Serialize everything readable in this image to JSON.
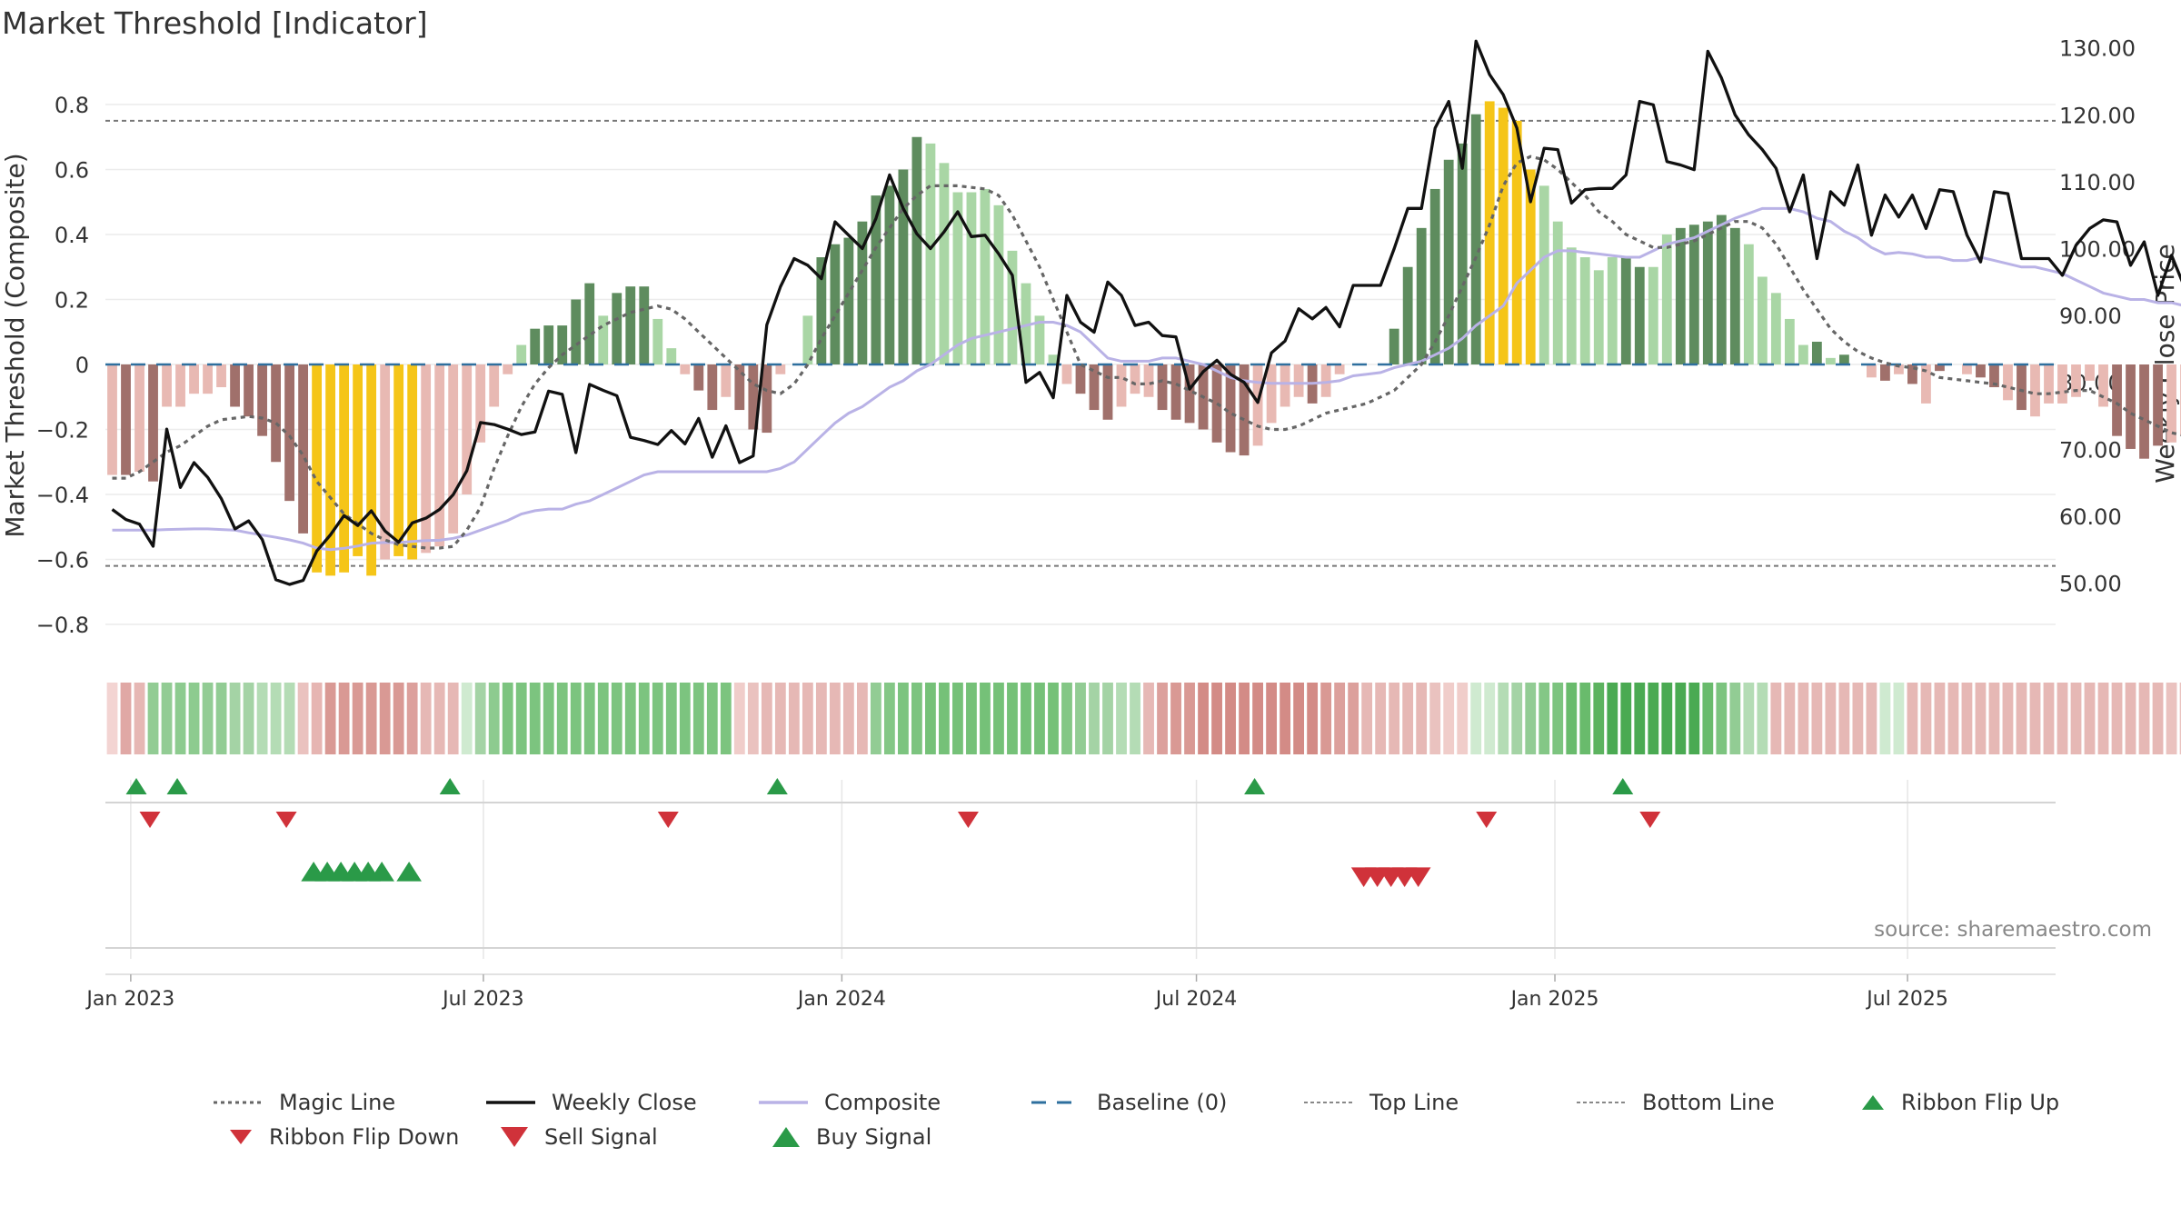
{
  "title": "Market Threshold [Indicator]",
  "source": "source: sharemaestro.com",
  "colors": {
    "dark_green": "#5e8c5e",
    "light_green": "#a9d6a5",
    "dark_red": "#a0706b",
    "light_red": "#e8b9b3",
    "yellow": "#f5c518",
    "magic": "#666666",
    "close": "#111111",
    "composite": "#b9b2e6",
    "baseline": "#2e6f9e",
    "up": "#2a9a48",
    "down": "#d0323a"
  },
  "chart_data": {
    "type": "bar",
    "title": "Market Threshold [Indicator]",
    "ylabel": "Market Threshold (Composite)",
    "ylabel_right": "Weekly Close Price",
    "ylim": [
      -0.9,
      0.82
    ],
    "ylim_right": [
      48,
      132
    ],
    "yticks": [
      -0.8,
      -0.6,
      -0.4,
      -0.2,
      0,
      0.2,
      0.4,
      0.6,
      0.8
    ],
    "ytick_labels": [
      "−0.8",
      "−0.6",
      "−0.4",
      "−0.2",
      "0",
      "0.2",
      "0.4",
      "0.6",
      "0.8"
    ],
    "yticks_right": [
      50,
      60,
      70,
      80,
      90,
      100,
      110,
      120,
      130
    ],
    "ytick_labels_right": [
      "50.00",
      "60.00",
      "70.00",
      "80.00",
      "90.00",
      "100.00",
      "110.00",
      "120.00",
      "130.00"
    ],
    "xlim": [
      "2022-12-19",
      "2025-09-15"
    ],
    "x_ticks": [
      "2023-01-01",
      "2023-07-01",
      "2024-01-01",
      "2024-07-01",
      "2025-01-01",
      "2025-07-01"
    ],
    "x_tick_labels": [
      "Jan 2023",
      "Jul 2023",
      "Jan 2024",
      "Jul 2024",
      "Jan 2025",
      "Jul 2025"
    ],
    "bar_start_date": "2022-12-19",
    "bar_interval_days": 7,
    "bar_values": [
      -0.34,
      -0.34,
      -0.33,
      -0.36,
      -0.13,
      -0.13,
      -0.09,
      -0.09,
      -0.07,
      -0.13,
      -0.16,
      -0.22,
      -0.3,
      -0.42,
      -0.52,
      -0.64,
      -0.65,
      -0.64,
      -0.59,
      -0.65,
      -0.6,
      -0.59,
      -0.6,
      -0.58,
      -0.56,
      -0.52,
      -0.4,
      -0.24,
      -0.13,
      -0.03,
      0.06,
      0.11,
      0.12,
      0.12,
      0.2,
      0.25,
      0.15,
      0.22,
      0.24,
      0.24,
      0.14,
      0.05,
      -0.03,
      -0.08,
      -0.14,
      -0.1,
      -0.14,
      -0.2,
      -0.21,
      -0.03,
      0.0,
      0.15,
      0.33,
      0.37,
      0.39,
      0.44,
      0.52,
      0.55,
      0.6,
      0.7,
      0.68,
      0.62,
      0.53,
      0.53,
      0.54,
      0.49,
      0.35,
      0.25,
      0.15,
      0.03,
      -0.06,
      -0.09,
      -0.14,
      -0.17,
      -0.13,
      -0.09,
      -0.1,
      -0.14,
      -0.17,
      -0.18,
      -0.2,
      -0.24,
      -0.27,
      -0.28,
      -0.25,
      -0.18,
      -0.13,
      -0.1,
      -0.12,
      -0.1,
      -0.03,
      0.0,
      0.0,
      0.0,
      0.11,
      0.3,
      0.42,
      0.54,
      0.63,
      0.68,
      0.77,
      0.81,
      0.79,
      0.75,
      0.6,
      0.55,
      0.44,
      0.36,
      0.33,
      0.29,
      0.33,
      0.33,
      0.3,
      0.3,
      0.4,
      0.42,
      0.43,
      0.44,
      0.46,
      0.42,
      0.37,
      0.27,
      0.22,
      0.14,
      0.06,
      0.07,
      0.02,
      0.03,
      0.0,
      -0.04,
      -0.05,
      -0.03,
      -0.06,
      -0.12,
      -0.02,
      0.0,
      -0.03,
      -0.04,
      -0.07,
      -0.11,
      -0.14,
      -0.16,
      -0.12,
      -0.12,
      -0.1,
      -0.05,
      -0.13,
      -0.22,
      -0.26,
      -0.29,
      -0.25,
      -0.24,
      -0.22
    ],
    "bar_colors": [
      "LR",
      "DR",
      "LR",
      "DR",
      "LR",
      "LR",
      "LR",
      "LR",
      "LR",
      "DR",
      "DR",
      "DR",
      "DR",
      "DR",
      "DR",
      "Y",
      "Y",
      "Y",
      "Y",
      "Y",
      "LR",
      "Y",
      "Y",
      "LR",
      "LR",
      "LR",
      "LR",
      "LR",
      "LR",
      "LR",
      "LG",
      "DG",
      "DG",
      "DG",
      "DG",
      "DG",
      "LG",
      "DG",
      "DG",
      "DG",
      "LG",
      "LG",
      "LR",
      "DR",
      "DR",
      "LR",
      "DR",
      "DR",
      "DR",
      "LR",
      "LG",
      "LG",
      "DG",
      "DG",
      "DG",
      "DG",
      "DG",
      "DG",
      "DG",
      "DG",
      "LG",
      "LG",
      "LG",
      "LG",
      "LG",
      "LG",
      "LG",
      "LG",
      "LG",
      "LG",
      "LR",
      "DR",
      "DR",
      "DR",
      "LR",
      "LR",
      "LR",
      "DR",
      "DR",
      "DR",
      "DR",
      "DR",
      "DR",
      "DR",
      "LR",
      "LR",
      "LR",
      "LR",
      "DR",
      "LR",
      "LR",
      "LR",
      "LR",
      "LR",
      "DG",
      "DG",
      "DG",
      "DG",
      "DG",
      "DG",
      "DG",
      "Y",
      "Y",
      "Y",
      "Y",
      "LG",
      "LG",
      "LG",
      "LG",
      "LG",
      "LG",
      "DG",
      "DG",
      "LG",
      "LG",
      "DG",
      "DG",
      "DG",
      "DG",
      "DG",
      "LG",
      "LG",
      "LG",
      "LG",
      "LG",
      "DG",
      "LG",
      "DG",
      "LR",
      "LR",
      "DR",
      "LR",
      "DR",
      "LR",
      "DR",
      "LR",
      "LR",
      "DR",
      "DR",
      "LR",
      "DR",
      "LR",
      "LR",
      "LR",
      "LR",
      "LR",
      "LR",
      "DR",
      "DR",
      "DR",
      "DR",
      "LR",
      "LR",
      "DR"
    ],
    "series": [
      {
        "name": "Weekly Close",
        "axis": "right",
        "values": [
          61.0,
          59.5,
          58.8,
          55.5,
          73.0,
          64.3,
          68.0,
          65.8,
          62.6,
          58.1,
          59.3,
          56.5,
          50.5,
          49.8,
          50.4,
          54.8,
          57.2,
          60.1,
          58.6,
          60.8,
          57.8,
          56.1,
          59.0,
          59.7,
          61.0,
          63.2,
          66.8,
          74.0,
          73.7,
          73.0,
          72.2,
          72.6,
          78.7,
          78.2,
          69.5,
          79.7,
          78.8,
          78.0,
          71.8,
          71.3,
          70.7,
          72.8,
          70.8,
          74.6,
          68.8,
          73.5,
          68.0,
          69.0,
          88.6,
          94.3,
          98.5,
          97.5,
          95.5,
          104.0,
          102.0,
          100.0,
          104.5,
          111.0,
          106.0,
          102.2,
          100.0,
          102.5,
          105.5,
          101.8,
          102.0,
          99.2,
          96.0,
          80.0,
          81.5,
          77.7,
          93.0,
          89.0,
          87.5,
          95.0,
          93.0,
          88.5,
          89.0,
          87.0,
          86.8,
          79.0,
          81.6,
          83.3,
          81.2,
          80.0,
          77.0,
          84.4,
          86.2,
          91.0,
          89.5,
          91.2,
          88.3,
          94.5,
          94.5,
          94.5,
          100.0,
          106.0,
          106.0,
          118.0,
          122.0,
          112.0,
          131.0,
          126.0,
          123.0,
          118.0,
          107.0,
          115.0,
          114.8,
          106.8,
          108.8,
          109.0,
          109.0,
          111.0,
          122.0,
          121.5,
          113.0,
          112.5,
          111.8,
          129.5,
          125.5,
          120.0,
          117.0,
          114.8,
          112.0,
          105.5,
          111.0,
          98.5,
          108.5,
          106.5,
          112.5,
          102.0,
          108.0,
          104.7,
          108.0,
          103.0,
          108.8,
          108.5,
          102.0,
          98.0,
          108.5,
          108.2,
          98.5,
          98.5,
          98.5,
          96.0,
          100.5,
          103.0,
          104.3,
          104.0,
          97.5,
          101.0,
          93.0,
          99.0,
          94.0,
          96.0,
          95.0,
          94.0
        ]
      },
      {
        "name": "Composite",
        "axis": "left",
        "values": [
          -0.51,
          -0.51,
          -0.51,
          -0.51,
          -0.508,
          -0.507,
          -0.506,
          -0.506,
          -0.508,
          -0.51,
          -0.518,
          -0.525,
          -0.532,
          -0.54,
          -0.55,
          -0.565,
          -0.57,
          -0.566,
          -0.559,
          -0.55,
          -0.548,
          -0.548,
          -0.545,
          -0.542,
          -0.541,
          -0.535,
          -0.525,
          -0.51,
          -0.495,
          -0.48,
          -0.46,
          -0.45,
          -0.445,
          -0.445,
          -0.43,
          -0.42,
          -0.4,
          -0.38,
          -0.36,
          -0.34,
          -0.33,
          -0.33,
          -0.33,
          -0.33,
          -0.33,
          -0.33,
          -0.33,
          -0.33,
          -0.33,
          -0.32,
          -0.3,
          -0.26,
          -0.22,
          -0.18,
          -0.15,
          -0.13,
          -0.1,
          -0.07,
          -0.05,
          -0.02,
          0.0,
          0.03,
          0.06,
          0.08,
          0.09,
          0.1,
          0.11,
          0.12,
          0.13,
          0.13,
          0.12,
          0.1,
          0.06,
          0.02,
          0.01,
          0.01,
          0.01,
          0.02,
          0.02,
          0.01,
          0.0,
          -0.02,
          -0.04,
          -0.05,
          -0.055,
          -0.058,
          -0.058,
          -0.058,
          -0.058,
          -0.055,
          -0.05,
          -0.035,
          -0.03,
          -0.025,
          -0.01,
          0.0,
          0.01,
          0.03,
          0.05,
          0.08,
          0.12,
          0.15,
          0.18,
          0.25,
          0.29,
          0.33,
          0.35,
          0.35,
          0.345,
          0.34,
          0.335,
          0.33,
          0.33,
          0.35,
          0.37,
          0.38,
          0.39,
          0.41,
          0.43,
          0.45,
          0.465,
          0.48,
          0.48,
          0.48,
          0.47,
          0.45,
          0.44,
          0.41,
          0.39,
          0.36,
          0.34,
          0.345,
          0.34,
          0.33,
          0.33,
          0.32,
          0.32,
          0.33,
          0.32,
          0.31,
          0.3,
          0.3,
          0.29,
          0.28,
          0.26,
          0.24,
          0.22,
          0.21,
          0.2,
          0.2,
          0.19,
          0.19,
          0.18,
          0.18,
          0.16,
          0.15,
          0.14,
          0.13,
          0.12,
          0.12
        ]
      },
      {
        "name": "Magic Line",
        "axis": "left",
        "values": [
          -0.35,
          -0.35,
          -0.33,
          -0.3,
          -0.27,
          -0.25,
          -0.22,
          -0.19,
          -0.17,
          -0.165,
          -0.16,
          -0.165,
          -0.18,
          -0.22,
          -0.28,
          -0.36,
          -0.41,
          -0.46,
          -0.49,
          -0.52,
          -0.54,
          -0.555,
          -0.56,
          -0.565,
          -0.565,
          -0.56,
          -0.51,
          -0.44,
          -0.32,
          -0.22,
          -0.13,
          -0.06,
          -0.01,
          0.03,
          0.06,
          0.09,
          0.12,
          0.14,
          0.16,
          0.17,
          0.18,
          0.17,
          0.14,
          0.1,
          0.06,
          0.02,
          -0.02,
          -0.06,
          -0.08,
          -0.09,
          -0.06,
          0.0,
          0.08,
          0.15,
          0.22,
          0.29,
          0.36,
          0.42,
          0.48,
          0.52,
          0.55,
          0.55,
          0.55,
          0.545,
          0.54,
          0.52,
          0.46,
          0.38,
          0.3,
          0.2,
          0.1,
          0.0,
          -0.02,
          -0.04,
          -0.04,
          -0.06,
          -0.06,
          -0.05,
          -0.06,
          -0.08,
          -0.1,
          -0.12,
          -0.15,
          -0.17,
          -0.19,
          -0.2,
          -0.2,
          -0.19,
          -0.17,
          -0.15,
          -0.14,
          -0.13,
          -0.12,
          -0.1,
          -0.08,
          -0.04,
          0.0,
          0.07,
          0.15,
          0.24,
          0.33,
          0.43,
          0.55,
          0.62,
          0.64,
          0.63,
          0.6,
          0.56,
          0.52,
          0.47,
          0.44,
          0.4,
          0.38,
          0.36,
          0.36,
          0.37,
          0.38,
          0.4,
          0.42,
          0.44,
          0.44,
          0.42,
          0.37,
          0.3,
          0.23,
          0.17,
          0.11,
          0.07,
          0.04,
          0.02,
          0.005,
          -0.005,
          -0.01,
          -0.02,
          -0.04,
          -0.045,
          -0.05,
          -0.055,
          -0.06,
          -0.07,
          -0.08,
          -0.09,
          -0.09,
          -0.085,
          -0.08,
          -0.08,
          -0.1,
          -0.12,
          -0.15,
          -0.17,
          -0.19,
          -0.21,
          -0.22
        ]
      }
    ],
    "top_line": 0.75,
    "bottom_line": -0.62,
    "baseline": 0,
    "ribbon_colors": [
      "#f3d4d2",
      "#e0a8a5",
      "#e6b7b4",
      "#92cc94",
      "#92cc94",
      "#8dcb8f",
      "#8dcb8f",
      "#92cc94",
      "#92cc94",
      "#a4d3a5",
      "#a4d3a5",
      "#b4dcb5",
      "#b4dcb5",
      "#b4dcb5",
      "#eac2bf",
      "#e6b5b2",
      "#d99994",
      "#d99994",
      "#d99994",
      "#d99994",
      "#d99994",
      "#d99994",
      "#dca09c",
      "#e6b8b5",
      "#e6b8b5",
      "#e6b8b5",
      "#cfead0",
      "#a4d3a5",
      "#8dcb8f",
      "#7cc47f",
      "#7cc47f",
      "#7cc47f",
      "#7cc47f",
      "#7cc47f",
      "#7cc47f",
      "#7cc47f",
      "#7cc47f",
      "#7cc47f",
      "#7cc47f",
      "#7cc47f",
      "#7cc47f",
      "#7cc47f",
      "#7cc47f",
      "#7cc47f",
      "#7cc47f",
      "#7cc47f",
      "#f0cdca",
      "#eac2bf",
      "#e6b8b5",
      "#e6b8b5",
      "#e6b8b5",
      "#e6b8b5",
      "#e6b8b5",
      "#e6b8b5",
      "#e6b8b5",
      "#e6b8b5",
      "#92cc94",
      "#84c786",
      "#7cc47f",
      "#7cc47f",
      "#75c178",
      "#75c178",
      "#75c178",
      "#75c178",
      "#75c178",
      "#75c178",
      "#75c178",
      "#75c178",
      "#75c178",
      "#75c178",
      "#84c786",
      "#92cc94",
      "#a4d3a5",
      "#a4d3a5",
      "#b4dcb5",
      "#b4dcb5",
      "#e6b8b5",
      "#dca09c",
      "#d99994",
      "#d99994",
      "#d38b86",
      "#d38b86",
      "#d38b86",
      "#d38b86",
      "#d38b86",
      "#d38b86",
      "#d38b86",
      "#d38b86",
      "#d38b86",
      "#d99994",
      "#dca09c",
      "#dca09c",
      "#e6b8b5",
      "#e6b8b5",
      "#e6b8b5",
      "#e6b8b5",
      "#e6b8b5",
      "#eac2bf",
      "#f0cdca",
      "#f0cdca",
      "#cfead0",
      "#cfead0",
      "#b4dcb5",
      "#a4d3a5",
      "#92cc94",
      "#84c786",
      "#7cc47f",
      "#69bb6c",
      "#69bb6c",
      "#5cb35f",
      "#4aaa52",
      "#4aaa52",
      "#4aaa52",
      "#4aaa52",
      "#4aaa52",
      "#4aaa52",
      "#4aaa52",
      "#69bb6c",
      "#7cc47f",
      "#92cc94",
      "#b4dcb5",
      "#b4dcb5",
      "#e6b8b5",
      "#e6b8b5",
      "#e6b8b5",
      "#e6b8b5",
      "#e6b8b5",
      "#e6b8b5",
      "#e6b8b5",
      "#e6b8b5",
      "#cfead0",
      "#cfead0",
      "#e6b8b5",
      "#e6b8b5",
      "#e6b8b5",
      "#e6b8b5",
      "#e6b8b5",
      "#e6b8b5",
      "#e6b8b5",
      "#e6b8b5",
      "#e6b8b5",
      "#e6b8b5",
      "#e6b8b5",
      "#e6b8b5",
      "#e6b8b5",
      "#e6b8b5",
      "#e6b8b5",
      "#e6b8b5",
      "#e6b8b5",
      "#e6b8b5",
      "#e6b8b5",
      "#eac2bf",
      "#eac2bf",
      "#eac2bf"
    ],
    "ribbon_flip_up": [
      "2023-01-02",
      "2023-01-23",
      "2023-06-12",
      "2023-11-27",
      "2024-07-29",
      "2025-02-03"
    ],
    "ribbon_flip_down": [
      "2023-01-09",
      "2023-03-20",
      "2023-10-02",
      "2024-03-04",
      "2024-11-25",
      "2025-02-17"
    ],
    "buy_signals": [
      "2023-04-03",
      "2023-04-10",
      "2023-04-17",
      "2023-04-24",
      "2023-05-01",
      "2023-05-08",
      "2023-05-22"
    ],
    "sell_signals": [
      "2024-09-23",
      "2024-09-30",
      "2024-10-07",
      "2024-10-14",
      "2024-10-21"
    ]
  },
  "legend": [
    {
      "label": "Magic Line",
      "icon": "dotted-line"
    },
    {
      "label": "Weekly Close",
      "icon": "solid-line"
    },
    {
      "label": "Composite",
      "icon": "solid-line"
    },
    {
      "label": "Baseline (0)",
      "icon": "dashed-line"
    },
    {
      "label": "Top Line",
      "icon": "dotted-line"
    },
    {
      "label": "Bottom Line",
      "icon": "dotted-line"
    },
    {
      "label": "Ribbon Flip Up",
      "icon": "triangle-up"
    },
    {
      "label": "Ribbon Flip Down",
      "icon": "triangle-down"
    },
    {
      "label": "Sell Signal",
      "icon": "triangle-down"
    },
    {
      "label": "Buy Signal",
      "icon": "triangle-up"
    }
  ]
}
